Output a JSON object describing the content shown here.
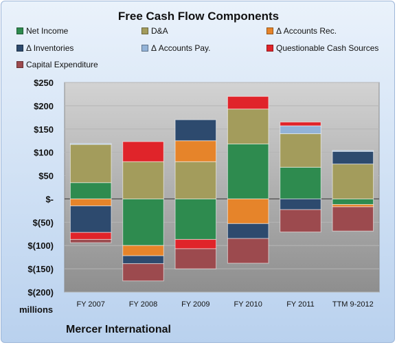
{
  "chart_data": {
    "type": "bar",
    "stacked": true,
    "title": "Free Cash Flow Components",
    "units_label": "millions",
    "company": "Mercer International",
    "categories": [
      "FY 2007",
      "FY 2008",
      "FY 2009",
      "FY 2010",
      "FY 2011",
      "TTM 9-2012"
    ],
    "ylim": [
      -200,
      250
    ],
    "yticks": [
      250,
      200,
      150,
      100,
      50,
      0,
      -50,
      -100,
      -150,
      -200
    ],
    "ytick_labels": [
      "$250",
      "$200",
      "$150",
      "$100",
      "$50",
      "$-",
      "$(50)",
      "$(100)",
      "$(150)",
      "$(200)"
    ],
    "grid": true,
    "legend_position": "top",
    "series": [
      {
        "name": "Net Income",
        "color": "#2e8b4f",
        "values": [
          35,
          -100,
          -87,
          118,
          68,
          -12
        ]
      },
      {
        "name": "D&A",
        "color": "#a39c5c",
        "values": [
          82,
          80,
          80,
          75,
          72,
          75
        ]
      },
      {
        "name": "Δ Accounts Rec.",
        "color": "#e6842a",
        "values": [
          -15,
          -22,
          45,
          -53,
          0,
          -5
        ]
      },
      {
        "name": "Δ Inventories",
        "color": "#2d4a6e",
        "values": [
          -57,
          -17,
          45,
          -32,
          -23,
          27
        ]
      },
      {
        "name": "Δ Accounts Pay.",
        "color": "#93b3d8",
        "values": [
          2,
          0,
          0,
          0,
          17,
          2
        ]
      },
      {
        "name": "Questionable Cash Sources",
        "color": "#e0242a",
        "values": [
          -15,
          43,
          -20,
          27,
          8,
          0
        ]
      },
      {
        "name": "Capital Expenditure",
        "color": "#9c4a4e",
        "values": [
          -7,
          -37,
          -43,
          -53,
          -48,
          -52
        ]
      }
    ]
  }
}
